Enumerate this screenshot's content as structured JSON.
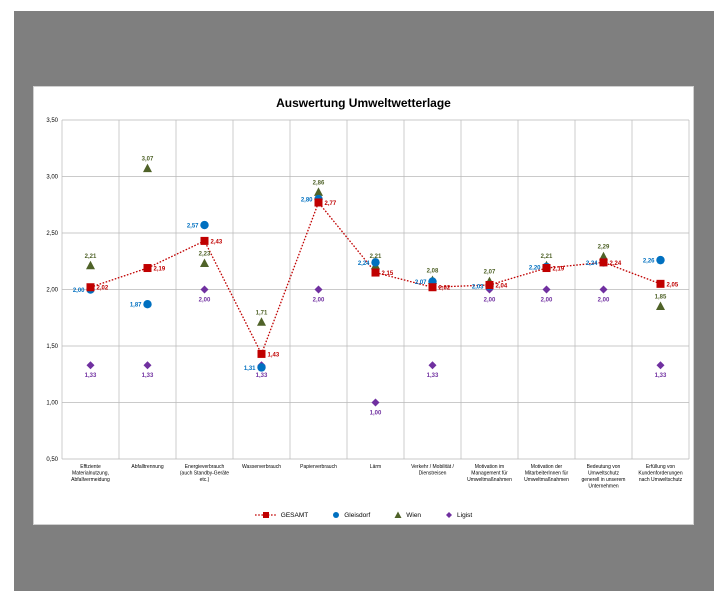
{
  "chart_data": {
    "type": "line",
    "title": "Auswertung Umweltwetterlage",
    "ylim": [
      0.5,
      3.5
    ],
    "yticks": [
      "0,50",
      "1,00",
      "1,50",
      "2,00",
      "2,50",
      "3,00",
      "3,50"
    ],
    "categories": [
      [
        "Effiziente",
        "Materialnutzung,",
        "Abfallvermeidung"
      ],
      [
        "Abfalltrennung"
      ],
      [
        "Energieverbrauch",
        "(auch Standby-Geräte",
        "etc.)"
      ],
      [
        "Wasserverbrauch"
      ],
      [
        "Papierverbrauch"
      ],
      [
        "Lärm"
      ],
      [
        "Verkehr / Mobilität /",
        "Dienstreisen"
      ],
      [
        "Motivation im",
        "Management für",
        "Umweltmaßnahmen"
      ],
      [
        "Motivation der",
        "MitarbeiterInnen für",
        "Umweltmaßnahmen"
      ],
      [
        "Bedeutung von",
        "Umweltschutz",
        "generell in unserem",
        "Unternehmen"
      ],
      [
        "Erfüllung von",
        "Kundenforderungen",
        "nach Umweltschutz"
      ]
    ],
    "series": [
      {
        "name": "GESAMT",
        "marker": "square",
        "color": "#c00000",
        "line": "dotted",
        "values": [
          2.02,
          2.19,
          2.43,
          1.43,
          2.77,
          2.15,
          2.02,
          2.04,
          2.19,
          2.24,
          2.05
        ],
        "labels": [
          "2,02",
          "2,19",
          "2,43",
          "1,43",
          "2,77",
          "2,15",
          "2,02",
          "2,04",
          "2,19",
          "2,24",
          "2,05"
        ]
      },
      {
        "name": "Gleisdorf",
        "marker": "circle",
        "color": "#0070c0",
        "values": [
          2.0,
          1.87,
          2.57,
          1.31,
          2.8,
          2.24,
          2.07,
          2.03,
          2.2,
          2.24,
          2.26
        ],
        "labels": [
          "2,00",
          "1,87",
          "2,57",
          "1,31",
          "2,80",
          "2,24",
          "2,07",
          "2,03",
          "2,20",
          "2,24",
          "2,26"
        ]
      },
      {
        "name": "Wien",
        "marker": "triangle",
        "color": "#4f6228",
        "values": [
          2.21,
          3.07,
          2.23,
          1.71,
          2.86,
          2.21,
          2.08,
          2.07,
          2.21,
          2.29,
          1.85
        ],
        "labels": [
          "2,21",
          "3,07",
          "2,23",
          "1,71",
          "2,86",
          "2,21",
          "2,08",
          "2,07",
          "2,21",
          "2,29",
          "1,85"
        ]
      },
      {
        "name": "Ligist",
        "marker": "diamond",
        "color": "#7030a0",
        "values": [
          1.33,
          1.33,
          2.0,
          1.33,
          2.0,
          1.0,
          1.33,
          2.0,
          2.0,
          2.0,
          1.33
        ],
        "labels": [
          "1,33",
          "1,33",
          "2,00",
          "1,33",
          "2,00",
          "1,00",
          "1,33",
          "2,00",
          "2,00",
          "2,00",
          "1,33"
        ]
      }
    ],
    "grid": true,
    "legend_position": "bottom"
  }
}
